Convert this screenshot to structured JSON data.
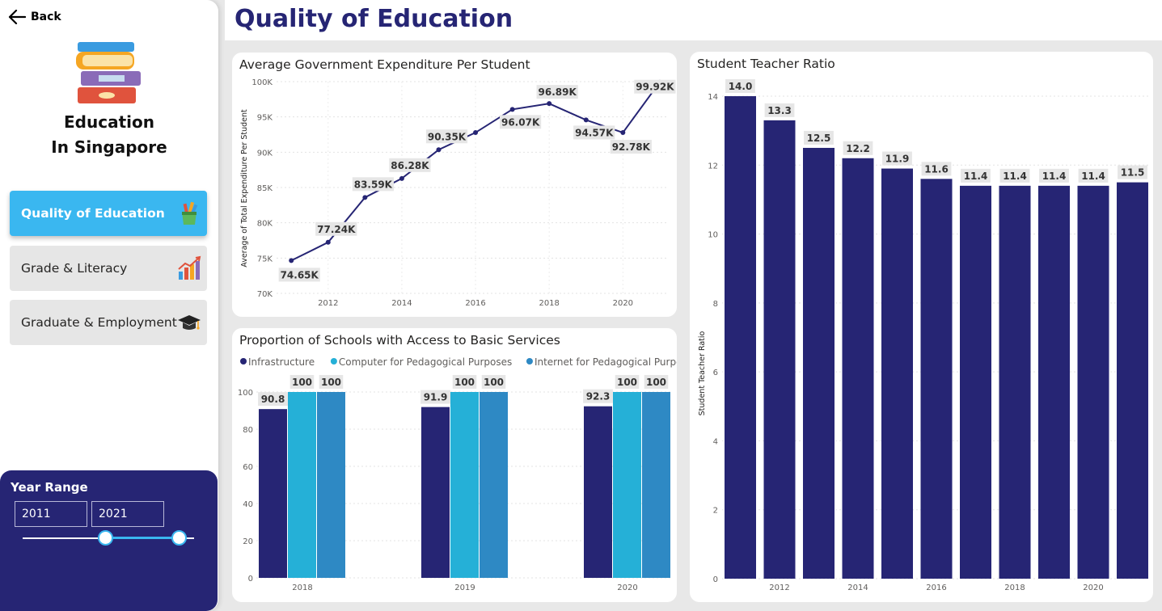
{
  "sidebar": {
    "back_label": "Back",
    "app_title_line1": "Education",
    "app_title_line2": "In Singapore",
    "nav": [
      {
        "label": "Quality of Education",
        "active": true,
        "icon": "pencil-cup-icon"
      },
      {
        "label": "Grade & Literacy",
        "active": false,
        "icon": "bar-chart-icon"
      },
      {
        "label": "Graduate & Employment",
        "active": false,
        "icon": "graduation-cap-icon"
      }
    ],
    "year_range": {
      "title": "Year Range",
      "start": "2011",
      "end": "2021",
      "start_fraction": 0.0,
      "end_fraction": 1.0
    }
  },
  "header": {
    "title": "Quality of Education"
  },
  "colors": {
    "navy": "#262574",
    "cyan": "#25b0d7",
    "blue": "#2e89c4",
    "accent": "#3ab7f0"
  },
  "charts": {
    "expenditure": {
      "title": "Average Government Expenditure Per Student"
    },
    "services": {
      "title": "Proportion of Schools with Access to Basic Services"
    },
    "ratio": {
      "title": "Student Teacher Ratio"
    }
  },
  "chart_data": [
    {
      "id": "expenditure",
      "type": "line",
      "title": "Average Government Expenditure Per Student",
      "xlabel": "",
      "ylabel": "Average of Total Expenditure Per Student",
      "x": [
        2011,
        2012,
        2013,
        2014,
        2015,
        2016,
        2017,
        2018,
        2019,
        2020,
        2021
      ],
      "values": [
        74.65,
        77.24,
        83.59,
        86.28,
        90.35,
        92.78,
        96.07,
        96.89,
        94.57,
        92.78,
        99.92
      ],
      "labels": [
        "74.65K",
        "77.24K",
        "83.59K",
        "86.28K",
        "90.35K",
        null,
        "96.07K",
        "96.89K",
        "94.57K",
        "92.78K",
        "99.92K"
      ],
      "x_ticks": [
        "2012",
        "2014",
        "2016",
        "2018",
        "2020"
      ],
      "y_ticks": [
        "70K",
        "75K",
        "80K",
        "85K",
        "90K",
        "95K",
        "100K"
      ],
      "ylim": [
        70,
        100
      ],
      "grid": true
    },
    {
      "id": "services",
      "type": "bar",
      "title": "Proportion of Schools with Access to Basic Services",
      "categories": [
        "2018",
        "2019",
        "2020"
      ],
      "series": [
        {
          "name": "Infrastructure",
          "values": [
            90.8,
            91.9,
            92.3
          ],
          "color": "#262574"
        },
        {
          "name": "Computer for Pedagogical Purposes",
          "values": [
            100,
            100,
            100
          ],
          "color": "#25b0d7"
        },
        {
          "name": "Internet for Pedagogical Purposes",
          "values": [
            100,
            100,
            100
          ],
          "color": "#2e89c4"
        }
      ],
      "y_ticks": [
        "0",
        "20",
        "40",
        "60",
        "80",
        "100"
      ],
      "ylim": [
        0,
        100
      ],
      "legend": "top-left",
      "grid": true
    },
    {
      "id": "ratio",
      "type": "bar",
      "title": "Student Teacher Ratio",
      "xlabel": "",
      "ylabel": "Student Teacher Ratio",
      "categories": [
        "2011",
        "2012",
        "2013",
        "2014",
        "2015",
        "2016",
        "2017",
        "2018",
        "2019",
        "2020",
        "2021"
      ],
      "values": [
        14.0,
        13.3,
        12.5,
        12.2,
        11.9,
        11.6,
        11.4,
        11.4,
        11.4,
        11.4,
        11.5
      ],
      "labels": [
        "14.0",
        "13.3",
        "12.5",
        "12.2",
        "11.9",
        "11.6",
        "11.4",
        "11.4",
        "11.4",
        "11.4",
        "11.5"
      ],
      "x_ticks": [
        "2012",
        "2014",
        "2016",
        "2018",
        "2020"
      ],
      "y_ticks": [
        "0",
        "2",
        "4",
        "6",
        "8",
        "10",
        "12",
        "14"
      ],
      "ylim": [
        0,
        14
      ],
      "color": "#262574",
      "grid": true
    }
  ]
}
